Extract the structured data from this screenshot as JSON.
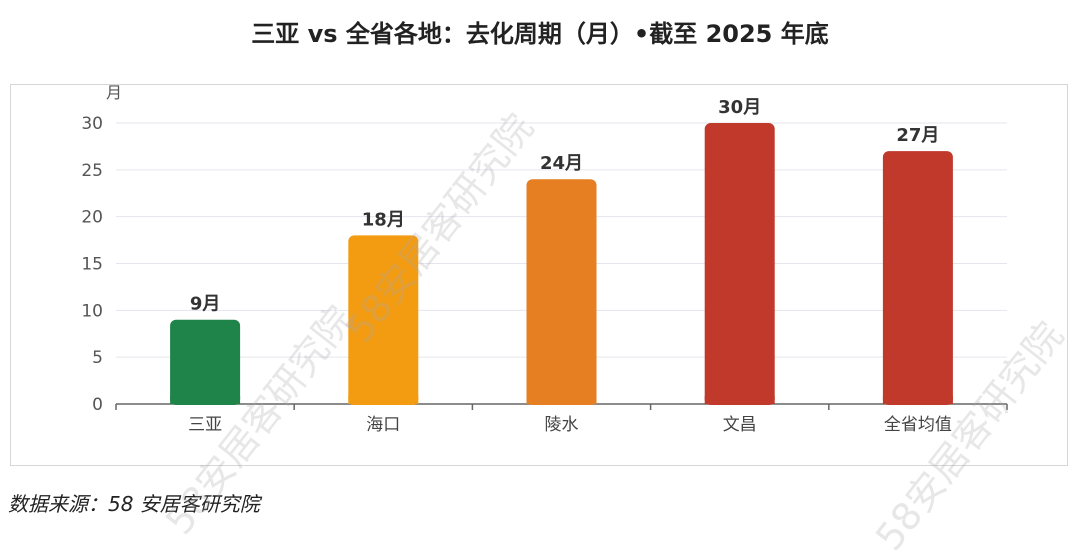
{
  "title": "三亚 vs 全省各地：去化周期（月）•截至 2025 年底",
  "source": "数据来源：58 安居客研究院",
  "watermark": "58安居客研究院",
  "chart_data": {
    "type": "bar",
    "ylabel": "月",
    "ylim": [
      0,
      30
    ],
    "yticks": [
      0,
      5,
      10,
      15,
      20,
      25,
      30
    ],
    "ytick_labels": [
      "0",
      "5",
      "10",
      "15",
      "20",
      "25",
      "30"
    ],
    "grid": true,
    "categories": [
      "三亚",
      "海口",
      "陵水",
      "文昌",
      "全省均值"
    ],
    "values": [
      9,
      18,
      24,
      30,
      27
    ],
    "data_labels": [
      "9月",
      "18月",
      "24月",
      "30月",
      "27月"
    ],
    "colors": [
      "#1e8449",
      "#f39c12",
      "#e67e22",
      "#c0392b",
      "#c0392b"
    ]
  }
}
